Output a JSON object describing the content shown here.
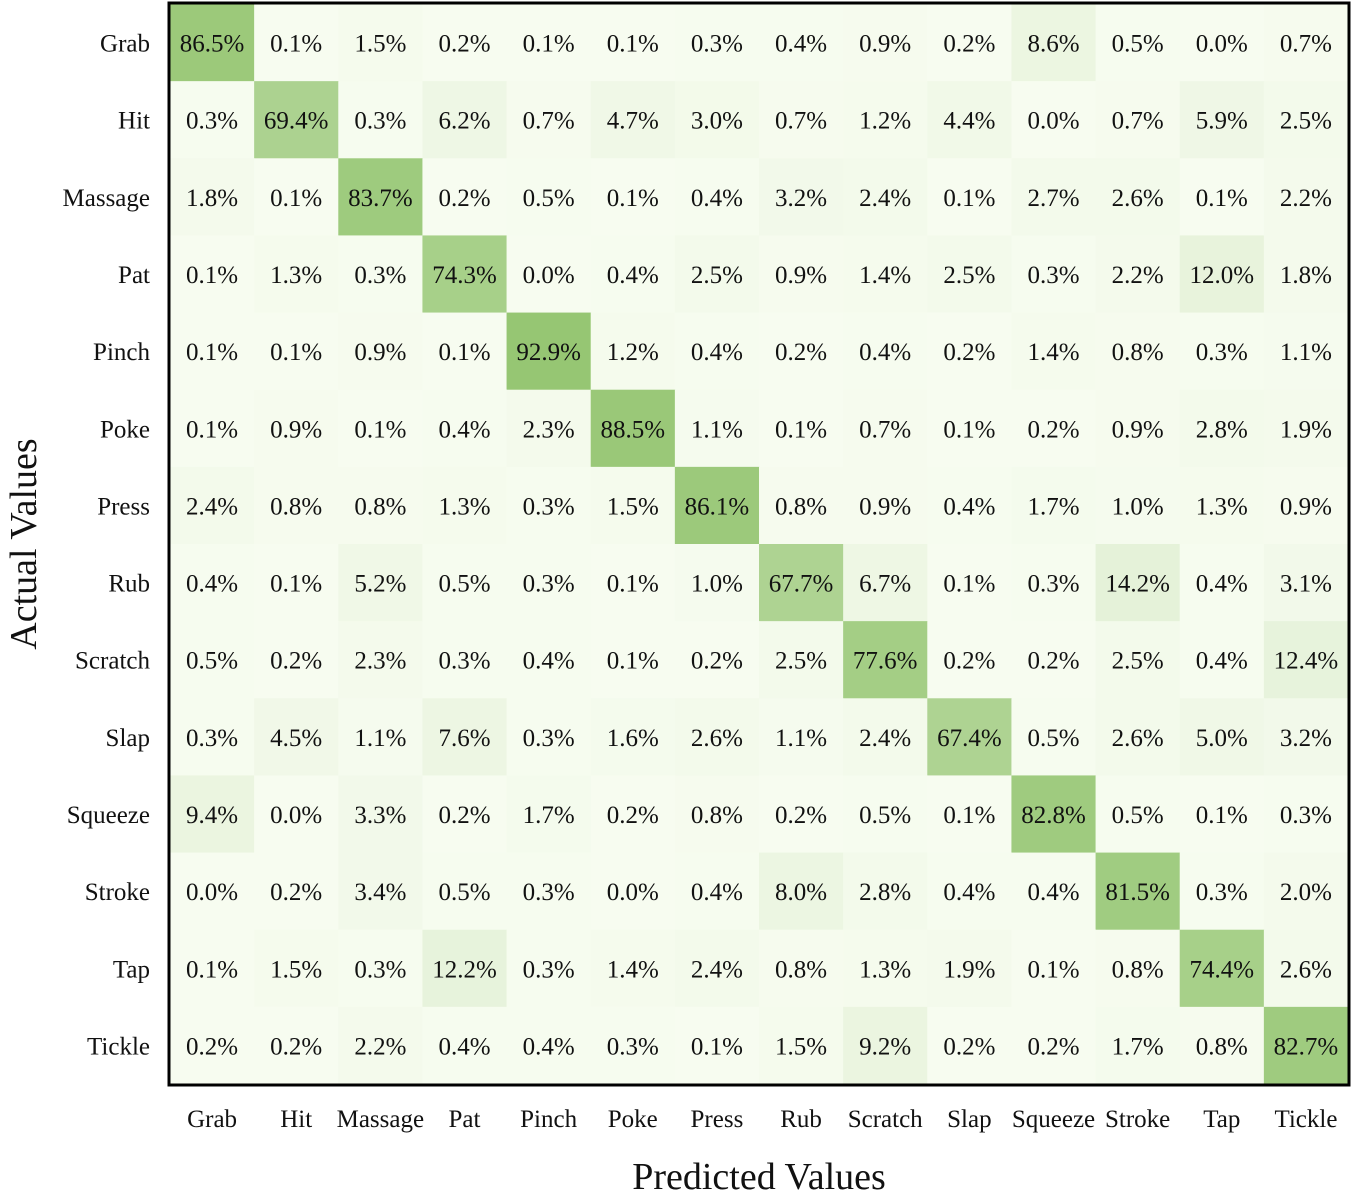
{
  "chart_data": {
    "type": "heatmap",
    "title": "",
    "xlabel": "Predicted Values",
    "ylabel": "Actual Values",
    "x_categories": [
      "Grab",
      "Hit",
      "Massage",
      "Pat",
      "Pinch",
      "Poke",
      "Press",
      "Rub",
      "Scratch",
      "Slap",
      "Squeeze",
      "Stroke",
      "Tap",
      "Tickle"
    ],
    "y_categories": [
      "Grab",
      "Hit",
      "Massage",
      "Pat",
      "Pinch",
      "Poke",
      "Press",
      "Rub",
      "Scratch",
      "Slap",
      "Squeeze",
      "Stroke",
      "Tap",
      "Tickle"
    ],
    "value_unit": "%",
    "values": [
      [
        86.5,
        0.1,
        1.5,
        0.2,
        0.1,
        0.1,
        0.3,
        0.4,
        0.9,
        0.2,
        8.6,
        0.5,
        0.0,
        0.7
      ],
      [
        0.3,
        69.4,
        0.3,
        6.2,
        0.7,
        4.7,
        3.0,
        0.7,
        1.2,
        4.4,
        0.0,
        0.7,
        5.9,
        2.5
      ],
      [
        1.8,
        0.1,
        83.7,
        0.2,
        0.5,
        0.1,
        0.4,
        3.2,
        2.4,
        0.1,
        2.7,
        2.6,
        0.1,
        2.2
      ],
      [
        0.1,
        1.3,
        0.3,
        74.3,
        0.0,
        0.4,
        2.5,
        0.9,
        1.4,
        2.5,
        0.3,
        2.2,
        12.0,
        1.8
      ],
      [
        0.1,
        0.1,
        0.9,
        0.1,
        92.9,
        1.2,
        0.4,
        0.2,
        0.4,
        0.2,
        1.4,
        0.8,
        0.3,
        1.1
      ],
      [
        0.1,
        0.9,
        0.1,
        0.4,
        2.3,
        88.5,
        1.1,
        0.1,
        0.7,
        0.1,
        0.2,
        0.9,
        2.8,
        1.9
      ],
      [
        2.4,
        0.8,
        0.8,
        1.3,
        0.3,
        1.5,
        86.1,
        0.8,
        0.9,
        0.4,
        1.7,
        1.0,
        1.3,
        0.9
      ],
      [
        0.4,
        0.1,
        5.2,
        0.5,
        0.3,
        0.1,
        1.0,
        67.7,
        6.7,
        0.1,
        0.3,
        14.2,
        0.4,
        3.1
      ],
      [
        0.5,
        0.2,
        2.3,
        0.3,
        0.4,
        0.1,
        0.2,
        2.5,
        77.6,
        0.2,
        0.2,
        2.5,
        0.4,
        12.4
      ],
      [
        0.3,
        4.5,
        1.1,
        7.6,
        0.3,
        1.6,
        2.6,
        1.1,
        2.4,
        67.4,
        0.5,
        2.6,
        5.0,
        3.2
      ],
      [
        9.4,
        0.0,
        3.3,
        0.2,
        1.7,
        0.2,
        0.8,
        0.2,
        0.5,
        0.1,
        82.8,
        0.5,
        0.1,
        0.3
      ],
      [
        0.0,
        0.2,
        3.4,
        0.5,
        0.3,
        0.0,
        0.4,
        8.0,
        2.8,
        0.4,
        0.4,
        81.5,
        0.3,
        2.0
      ],
      [
        0.1,
        1.5,
        0.3,
        12.2,
        0.3,
        1.4,
        2.4,
        0.8,
        1.3,
        1.9,
        0.1,
        0.8,
        74.4,
        2.6
      ],
      [
        0.2,
        0.2,
        2.2,
        0.4,
        0.4,
        0.3,
        0.1,
        1.5,
        9.2,
        0.2,
        0.2,
        1.7,
        0.8,
        82.7
      ]
    ],
    "colormap": {
      "low": "#f7fcf0",
      "high": "#8fc26a",
      "range": [
        0,
        100
      ]
    },
    "grid": false,
    "legend": "none"
  }
}
